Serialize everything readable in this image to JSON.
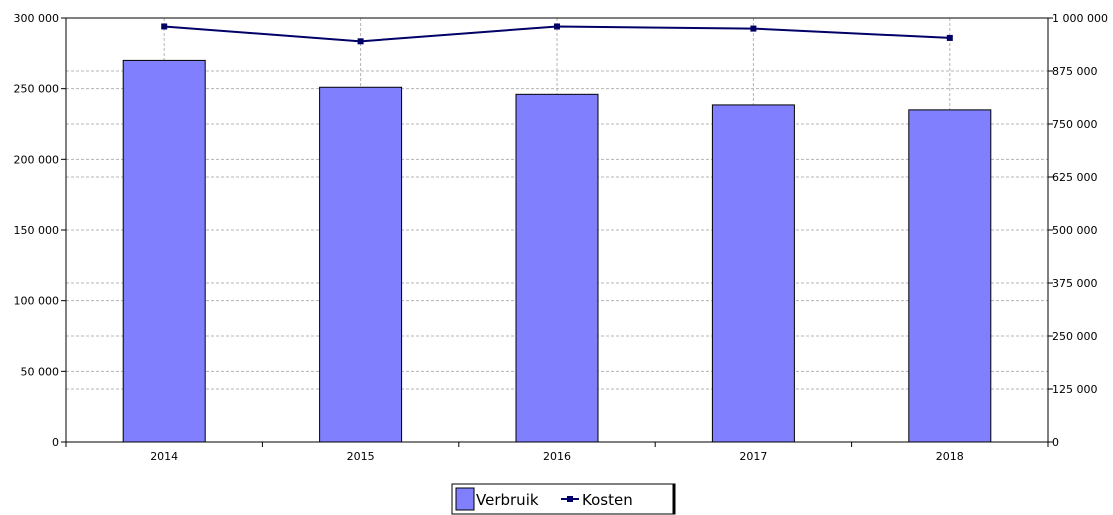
{
  "chart_data": {
    "type": "bar",
    "categories": [
      "2014",
      "2015",
      "2016",
      "2017",
      "2018"
    ],
    "series": [
      {
        "name": "Verbruik",
        "type": "bar",
        "axis": "left",
        "color": "#8080ff",
        "values": [
          270000,
          251000,
          246000,
          238500,
          235000
        ]
      },
      {
        "name": "Kosten",
        "type": "line",
        "axis": "right",
        "color": "#000066",
        "values": [
          980000,
          945000,
          980000,
          975000,
          953000
        ]
      }
    ],
    "y_left": {
      "range": [
        0,
        300000
      ],
      "ticks": [
        0,
        50000,
        100000,
        150000,
        200000,
        250000,
        300000
      ],
      "tick_labels": [
        "0",
        "50 000",
        "100 000",
        "150 000",
        "200 000",
        "250 000",
        "300 000"
      ]
    },
    "y_right": {
      "range": [
        0,
        1000000
      ],
      "ticks": [
        0,
        125000,
        250000,
        375000,
        500000,
        625000,
        750000,
        875000,
        1000000
      ],
      "tick_labels": [
        "0",
        "125 000",
        "250 000",
        "375 000",
        "500 000",
        "625 000",
        "750 000",
        "875 000",
        "1 000 000"
      ]
    },
    "grid": true,
    "legend_position": "bottom-center"
  }
}
